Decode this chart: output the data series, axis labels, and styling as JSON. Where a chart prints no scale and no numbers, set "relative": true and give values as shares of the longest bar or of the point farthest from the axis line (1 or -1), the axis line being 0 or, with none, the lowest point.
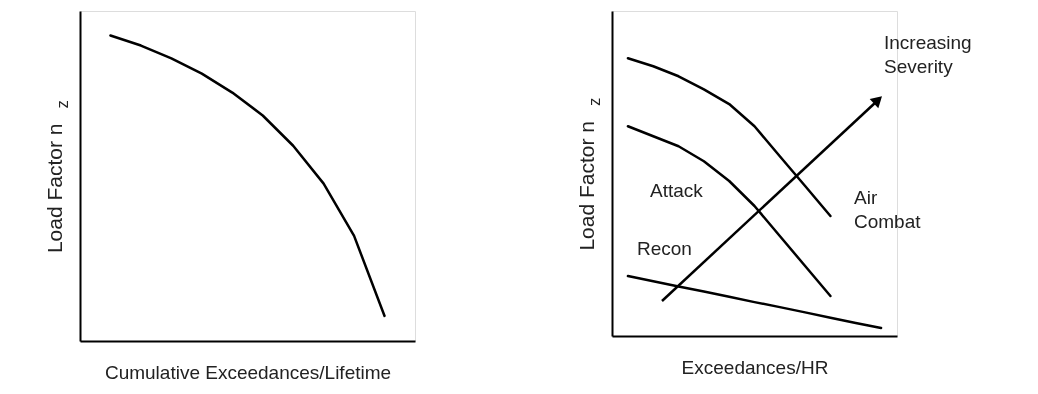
{
  "chart_data": [
    {
      "type": "line",
      "relative": true,
      "xlabel": "Cumulative Exceedances/Lifetime",
      "ylabel": "Load Factor n$_{z}$",
      "categories": [
        null,
        null,
        null,
        null,
        null,
        null,
        null,
        null,
        null,
        null
      ],
      "legend": false,
      "grid": false,
      "series": [
        {
          "color": "#000000",
          "values": [
            1,
            0.967,
            0.925,
            0.875,
            0.813,
            0.738,
            0.639,
            0.515,
            0.344,
            0.082
          ]
        }
      ]
    },
    {
      "type": "line",
      "relative": true,
      "xlabel": "Exceedances/HR",
      "ylabel": "Load Factor n$_{z}$",
      "categories": [
        null,
        null,
        null,
        null,
        null,
        null,
        null,
        null,
        null,
        null,
        null
      ],
      "legend": false,
      "grid": false,
      "annotations": [
        "Increasing Severity"
      ],
      "series": [
        {
          "name": "Air Combat",
          "color": "#000000",
          "values": [
            1,
            0.971,
            0.935,
            0.888,
            0.835,
            0.755,
            0.647,
            0.54,
            0.432,
            null,
            null
          ]
        },
        {
          "name": "Attack",
          "color": "#000000",
          "values": [
            0.755,
            0.719,
            0.683,
            0.629,
            0.558,
            0.468,
            0.36,
            0.252,
            0.144,
            null,
            null
          ]
        },
        {
          "name": "Recon",
          "color": "#000000",
          "values": [
            0.216,
            0.197,
            0.178,
            0.16,
            0.141,
            0.122,
            0.104,
            0.085,
            0.066,
            0.047,
            0.029
          ]
        }
      ]
    }
  ]
}
